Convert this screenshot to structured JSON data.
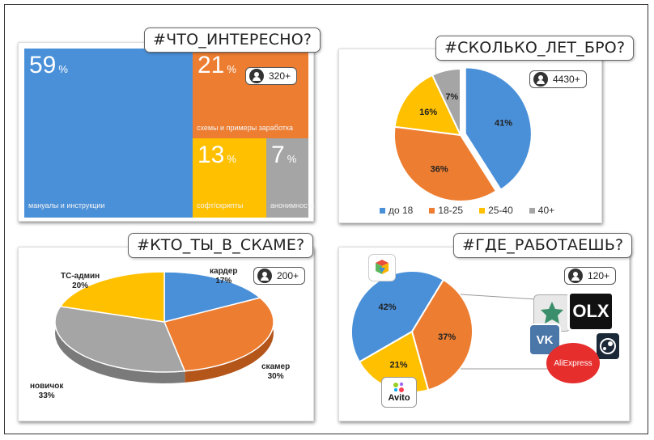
{
  "panels": {
    "interesting": {
      "tag": "#ЧТО_ИНТЕРЕСНО?",
      "badge": "320+",
      "cells": [
        {
          "value": "59",
          "unit": "%",
          "label": "мануалы и инструкции",
          "color": "#4a90d9"
        },
        {
          "value": "21",
          "unit": "%",
          "label": "схемы и примеры заработка",
          "color": "#ed7d31"
        },
        {
          "value": "13",
          "unit": "%",
          "label": "софт/скрипты",
          "color": "#ffc000"
        },
        {
          "value": "7",
          "unit": "%",
          "label": "анонимность",
          "color": "#a5a5a5"
        }
      ]
    },
    "age": {
      "tag": "#СКОЛЬКО_ЛЕТ_БРО?",
      "badge": "4430+"
    },
    "who": {
      "tag": "#КТО_ТЫ_В_СКАМЕ?",
      "badge": "200+"
    },
    "where": {
      "tag": "#ГДЕ_РАБОТАЕШЬ?",
      "badge": "120+",
      "logos": {
        "avito": "Avito",
        "olx": "OLX",
        "aliexpress": "AliExpress",
        "vk": "VK"
      }
    }
  },
  "chart_data": [
    {
      "type": "treemap",
      "categories": [
        "мануалы и инструкции",
        "схемы и примеры заработка",
        "софт/скрипты",
        "анонимность"
      ],
      "values": [
        59,
        21,
        13,
        7
      ],
      "colors": [
        "#4a90d9",
        "#ed7d31",
        "#ffc000",
        "#a5a5a5"
      ]
    },
    {
      "type": "pie",
      "categories": [
        "до 18",
        "18-25",
        "25-40",
        "40+"
      ],
      "values": [
        41,
        36,
        16,
        7
      ],
      "labels": [
        "41%",
        "36%",
        "16%",
        "7%"
      ],
      "colors": [
        "#4a90d9",
        "#ed7d31",
        "#ffc000",
        "#a5a5a5"
      ],
      "legend": "bottom"
    },
    {
      "type": "pie",
      "categories": [
        "кардер",
        "скамер",
        "новичок",
        "ТС-админ"
      ],
      "values": [
        17,
        30,
        33,
        20
      ],
      "labels": [
        "кардер\n17%",
        "скамер\n30%",
        "новичок\n33%",
        "ТС-админ\n20%"
      ],
      "colors": [
        "#4a90d9",
        "#ed7d31",
        "#a5a5a5",
        "#ffc000"
      ]
    },
    {
      "type": "pie",
      "categories": [
        "",
        "",
        ""
      ],
      "values": [
        42,
        37,
        21
      ],
      "labels": [
        "42%",
        "37%",
        "21%"
      ],
      "colors": [
        "#4a90d9",
        "#ed7d31",
        "#ffc000"
      ]
    }
  ]
}
